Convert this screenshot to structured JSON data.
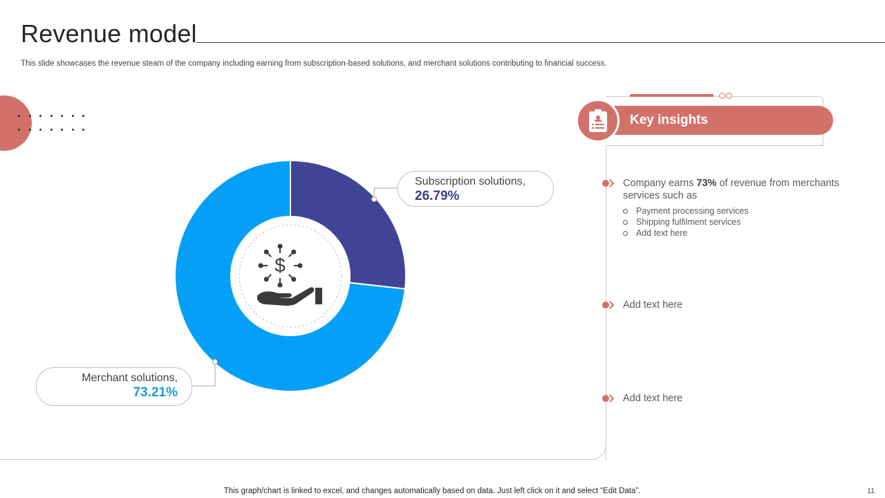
{
  "slide": {
    "title": "Revenue model",
    "description": "This slide showcases the revenue steam of the company including earning from subscription-based solutions, and merchant solutions contributing to financial success.",
    "footer_note": "This graph/chart is linked to excel, and changes automatically based on data. Just left click on it and select “Edit Data”.",
    "page_number": "11"
  },
  "colors": {
    "accent": "#d2716a",
    "subscription": "#3f4494",
    "merchant": "#069ff8",
    "subscription_text": "#3a3f8f",
    "merchant_text": "#1a9ad6"
  },
  "chart_data": {
    "type": "pie",
    "variant": "donut",
    "series": [
      {
        "name": "Subscription solutions",
        "value": 26.79,
        "label_value": "26.79%"
      },
      {
        "name": "Merchant solutions",
        "value": 73.21,
        "label_value": "73.21%"
      }
    ],
    "center_icon": "money-hand-icon"
  },
  "callouts": {
    "subscription": {
      "label": "Subscription solutions,",
      "value": "26.79%"
    },
    "merchant": {
      "label": "Merchant solutions,",
      "value": "73.21%"
    }
  },
  "insights": {
    "title": "Key insights",
    "icon": "clipboard-list-icon",
    "items": [
      {
        "text_prefix": "Company earns ",
        "text_bold": "73%",
        "text_suffix": " of revenue from merchants services such as",
        "subitems": [
          "Payment processing services",
          "Shipping fulfilment  services",
          "Add text here"
        ]
      },
      {
        "text": "Add text here"
      },
      {
        "text": "Add text here"
      }
    ]
  }
}
